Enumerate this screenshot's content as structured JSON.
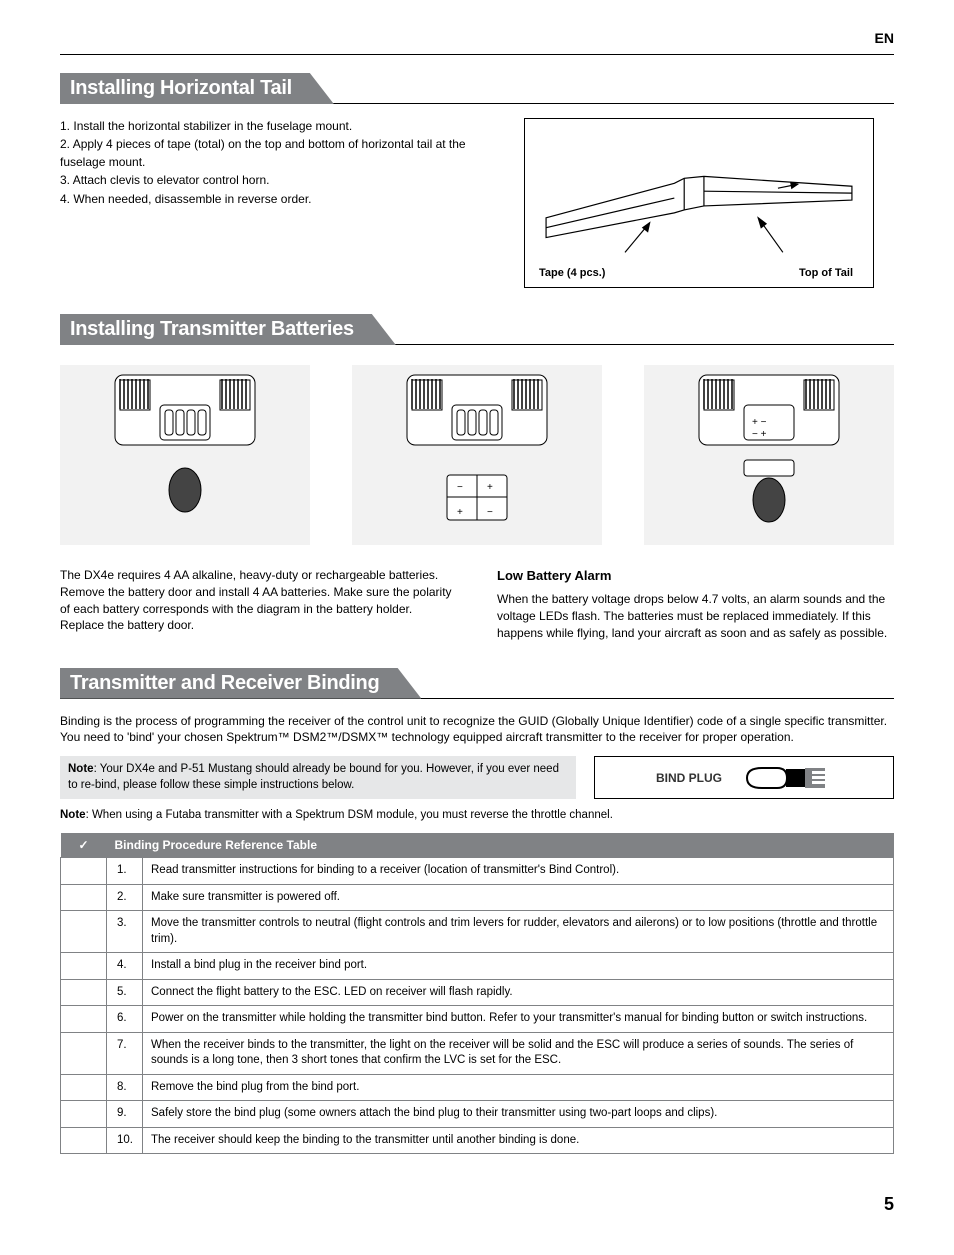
{
  "page": {
    "lang_badge": "EN",
    "page_number": "5"
  },
  "colors": {
    "heading_bg": "#808285",
    "heading_fg": "#ffffff",
    "gray_bg": "#e6e7e8",
    "image_bg": "#f2f2f2",
    "border": "#000000",
    "text": "#000000"
  },
  "section1": {
    "title": "Installing Horizontal Tail",
    "steps": [
      {
        "n": "1.",
        "text": "Install the horizontal stabilizer in the fuselage mount."
      },
      {
        "n": "2.",
        "text": "Apply 4 pieces of tape (total) on the top and bottom of horizontal tail at the fuselage mount."
      },
      {
        "n": "3.",
        "text": "Attach clevis to elevator control horn."
      },
      {
        "n": "4.",
        "text": "When needed, disassemble in reverse order."
      }
    ],
    "diagram": {
      "label_left": "Tape (4 pcs.)",
      "label_right": "Top of Tail"
    }
  },
  "section2": {
    "title": "Installing Transmitter Batteries",
    "left_text": "The DX4e requires 4 AA alkaline, heavy-duty or rechargeable batteries. Remove the battery door and install 4 AA batteries. Make sure the polarity of each battery corresponds with the diagram in the battery holder. Replace the battery door.",
    "right_title": "Low Battery Alarm",
    "right_text": "When the battery voltage drops below 4.7 volts, an alarm sounds and the voltage LEDs flash. The batteries must be replaced immediately. If this happens while flying, land your aircraft as soon and as safely as possible."
  },
  "section3": {
    "title": "Transmitter and Receiver Binding",
    "intro": "Binding is the process of programming the receiver of the control unit to recognize the GUID (Globally Unique Identifier) code of a single specific transmitter. You need to 'bind' your chosen Spektrum™ DSM2™/DSMX™ technology equipped aircraft transmitter to the receiver for proper operation.",
    "note1_label": "Note",
    "note1_text": ": Your DX4e and P-51 Mustang should already be bound for you. However, if you ever need to re-bind, please follow these simple instructions below.",
    "bind_plug_label": "BIND PLUG",
    "note2_label": "Note",
    "note2_text": ": When using a Futaba transmitter with a Spektrum DSM module, you must reverse the throttle channel.",
    "table_title": "Binding Procedure Reference Table",
    "check_symbol": "✓",
    "rows": [
      {
        "n": "1.",
        "text": "Read transmitter instructions for binding to a receiver (location of transmitter's Bind Control)."
      },
      {
        "n": "2.",
        "text": "Make sure transmitter is powered off."
      },
      {
        "n": "3.",
        "text": "Move the transmitter controls to neutral (flight controls and trim levers for rudder, elevators and ailerons) or to low positions (throttle and throttle trim)."
      },
      {
        "n": "4.",
        "text": "Install a bind plug in the receiver bind port."
      },
      {
        "n": "5.",
        "text": "Connect the flight battery to the ESC. LED on receiver will flash rapidly."
      },
      {
        "n": "6.",
        "text": "Power on the transmitter while holding the transmitter bind button. Refer to your transmitter's manual for binding button or switch instructions."
      },
      {
        "n": "7.",
        "text": "When the receiver binds to the transmitter, the light on the receiver will be solid and the ESC will produce a series of sounds. The series of sounds is a long tone, then 3 short tones that confirm the LVC is set for the ESC."
      },
      {
        "n": "8.",
        "text": "Remove the bind plug from the bind port."
      },
      {
        "n": "9.",
        "text": "Safely store the bind plug (some owners attach the bind plug to their transmitter using two-part loops and clips)."
      },
      {
        "n": "10.",
        "text": "The receiver should keep the binding to the transmitter until another binding is done."
      }
    ]
  }
}
